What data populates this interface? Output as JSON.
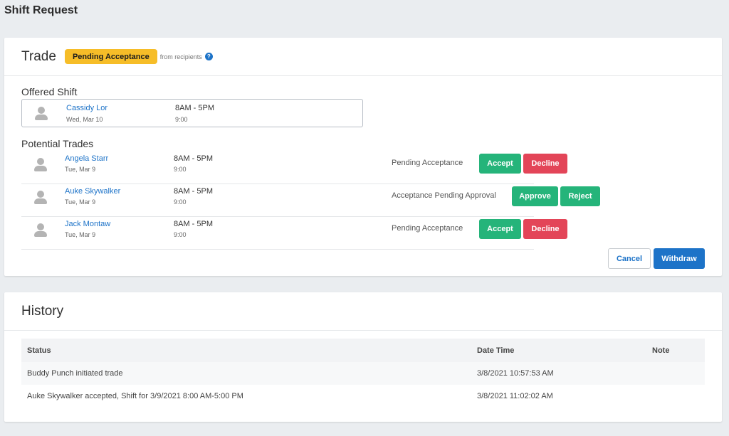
{
  "page": {
    "title": "Shift Request"
  },
  "trade": {
    "title": "Trade",
    "badge": "Pending Acceptance",
    "badge_note": "from recipients",
    "help_icon": "?",
    "offered_label": "Offered Shift",
    "offered": {
      "name": "Cassidy Lor",
      "date": "Wed, Mar 10",
      "time": "8AM - 5PM",
      "hours": "9:00"
    },
    "potential_label": "Potential Trades",
    "potential": [
      {
        "name": "Angela Starr",
        "date": "Tue, Mar 9",
        "time": "8AM - 5PM",
        "hours": "9:00",
        "status": "Pending Acceptance",
        "btn1": "Accept",
        "btn2": "Decline"
      },
      {
        "name": "Auke Skywalker",
        "date": "Tue, Mar 9",
        "time": "8AM - 5PM",
        "hours": "9:00",
        "status": "Acceptance Pending Approval",
        "btn1": "Approve",
        "btn2": "Reject"
      },
      {
        "name": "Jack Montaw",
        "date": "Tue, Mar 9",
        "time": "8AM - 5PM",
        "hours": "9:00",
        "status": "Pending Acceptance",
        "btn1": "Accept",
        "btn2": "Decline"
      }
    ],
    "cancel_label": "Cancel",
    "withdraw_label": "Withdraw"
  },
  "history": {
    "title": "History",
    "columns": [
      "Status",
      "Date Time",
      "Note"
    ],
    "rows": [
      {
        "status": "Buddy Punch initiated trade",
        "datetime": "3/8/2021 10:57:53 AM",
        "note": ""
      },
      {
        "status": "Auke Skywalker accepted, Shift for 3/9/2021 8:00 AM-5:00 PM",
        "datetime": "3/8/2021 11:02:02 AM",
        "note": ""
      }
    ]
  },
  "colors": {
    "badge": "#f6bd28",
    "link": "#1d73c8",
    "accept": "#25b47a",
    "decline": "#e34558",
    "primary": "#1d73c8"
  }
}
